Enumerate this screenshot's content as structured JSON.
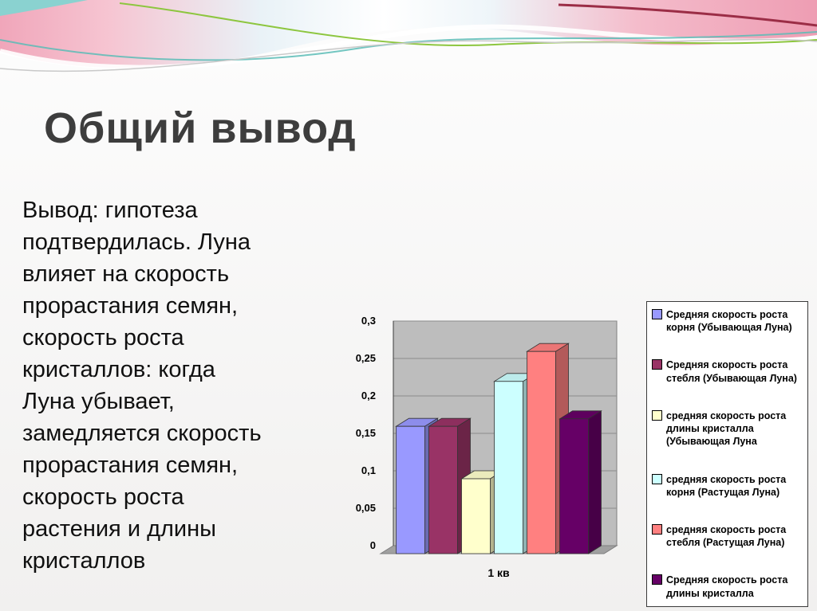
{
  "slide": {
    "title": "Общий вывод",
    "body_lines": [
      "Вывод: гипотеза",
      "подтвердилась. Луна",
      "влияет  на скорость",
      "прорастания семян,",
      "скорость роста",
      "кристаллов: когда",
      "Луна убывает,",
      "замедляется скорость",
      "прорастания семян,",
      "скорость роста",
      "растения и длины",
      "кристаллов"
    ]
  },
  "chart_data": {
    "type": "bar",
    "style": "3d-column",
    "categories": [
      "1 кв"
    ],
    "series": [
      {
        "name": "Средняя скорость роста корня (Убывающая Луна)",
        "color": "#9999FF",
        "values": [
          0.17
        ]
      },
      {
        "name": "Средняя скорость роста стебля (Убывающая Луна)",
        "color": "#993366",
        "values": [
          0.17
        ]
      },
      {
        "name": "средняя скорость роста длины кристалла (Убывающая Луна",
        "color": "#FFFFCC",
        "values": [
          0.1
        ]
      },
      {
        "name": "средняя скорость роста корня (Растущая Луна)",
        "color": "#CCFFFF",
        "values": [
          0.23
        ]
      },
      {
        "name": "средняя скорость роста стебля (Растущая Луна)",
        "color": "#FF8080",
        "values": [
          0.27
        ]
      },
      {
        "name": "Средняя скорость роста длины кристалла",
        "color": "#660066",
        "values": [
          0.18
        ]
      }
    ],
    "ylim": [
      0,
      0.3
    ],
    "ytick_step": 0.05,
    "ytick_labels": [
      "0",
      "0,05",
      "0,1",
      "0,15",
      "0,2",
      "0,25",
      "0,3"
    ],
    "xlabel": "",
    "ylabel": "",
    "grid": true,
    "legend_position": "right",
    "wall_color": "#bdbdbd",
    "floor_color": "#a0a0a0"
  }
}
